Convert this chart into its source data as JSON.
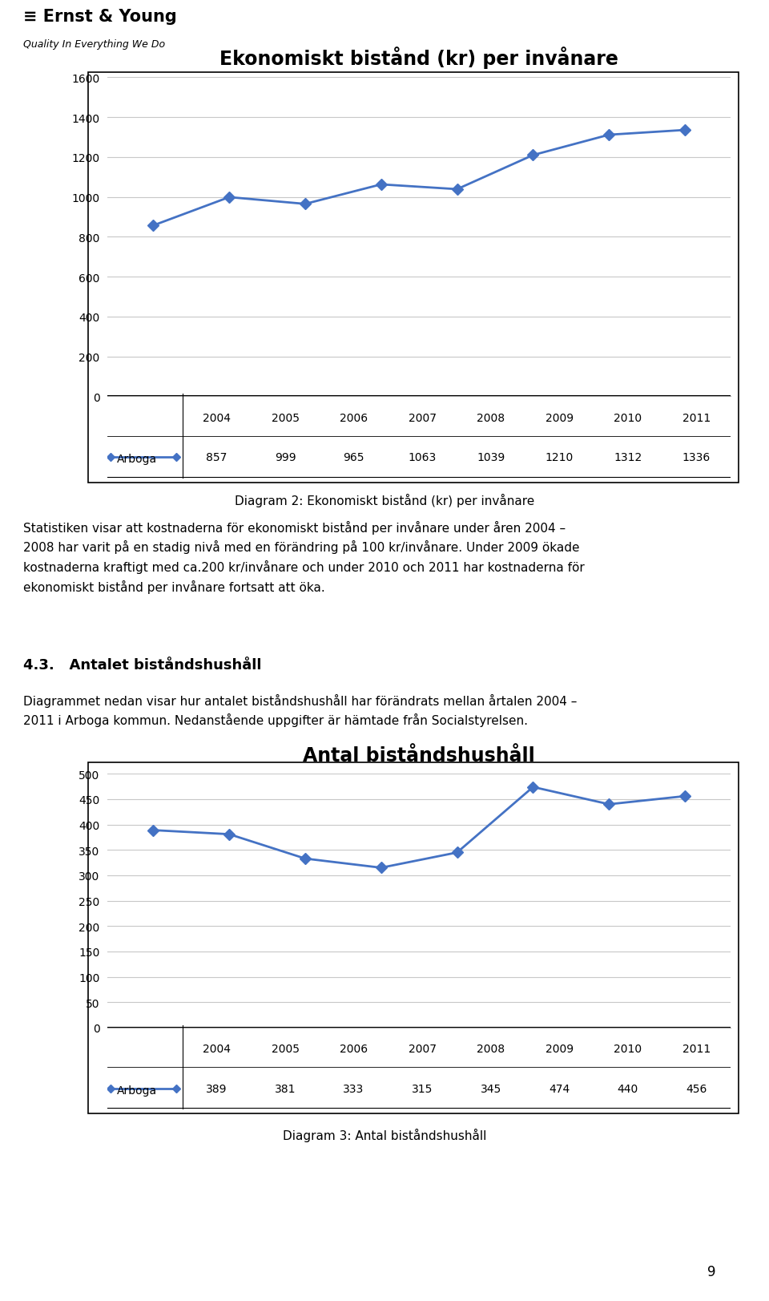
{
  "header_text": "≡ Ernst & Young",
  "header_subtitle": "Quality In Everything We Do",
  "chart1_title": "Ekonomiskt bistånd (kr) per invånare",
  "chart1_years": [
    2004,
    2005,
    2006,
    2007,
    2008,
    2009,
    2010,
    2011
  ],
  "chart1_values": [
    857,
    999,
    965,
    1063,
    1039,
    1210,
    1312,
    1336
  ],
  "chart1_ylim": [
    0,
    1600
  ],
  "chart1_yticks": [
    0,
    200,
    400,
    600,
    800,
    1000,
    1200,
    1400,
    1600
  ],
  "chart1_series_label": "Arboga",
  "chart1_caption": "Diagram 2: Ekonomiskt bistånd (kr) per invånare",
  "chart1_line_color": "#4472C4",
  "para1_line1": "Statistiken visar att kostnaderna för ekonomiskt bistånd per invånare under åren 2004 –",
  "para1_line2": "2008 har varit på en stadig nivå med en förändring på 100 kr/invånare. Under 2009 ökade",
  "para1_line3": "kostnaderna kraftigt med ca.200 kr/invånare och under 2010 och 2011 har kostnaderna för",
  "para1_line4": "ekonomiskt bistånd per invånare fortsatt att öka.",
  "section_title": "4.3.   Antalet biståndshushåll",
  "section_body_line1": "Diagrammet nedan visar hur antalet biståndshushåll har förändrats mellan årtalen 2004 –",
  "section_body_line2": "2011 i Arboga kommun. Nedanstående uppgifter är hämtade från Socialstyrelsen.",
  "chart2_title": "Antal biståndshushåll",
  "chart2_years": [
    2004,
    2005,
    2006,
    2007,
    2008,
    2009,
    2010,
    2011
  ],
  "chart2_values": [
    389,
    381,
    333,
    315,
    345,
    474,
    440,
    456
  ],
  "chart2_ylim": [
    0,
    500
  ],
  "chart2_yticks": [
    0,
    50,
    100,
    150,
    200,
    250,
    300,
    350,
    400,
    450,
    500
  ],
  "chart2_series_label": "Arboga",
  "chart2_caption": "Diagram 3: Antal biståndshushåll",
  "chart2_line_color": "#4472C4",
  "page_number": "9",
  "bg_color": "#ffffff",
  "chart_bg_color": "#ffffff",
  "grid_color": "#c8c8c8",
  "text_color": "#000000",
  "border_color": "#000000"
}
